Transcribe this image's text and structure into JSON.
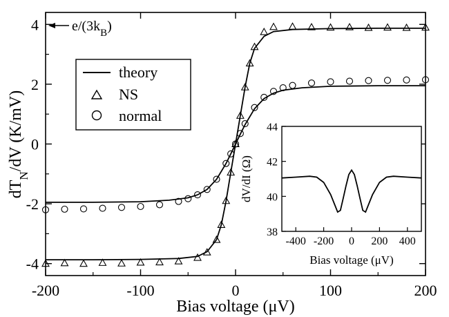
{
  "chart_data": [
    {
      "type": "line",
      "xlabel": "Bias voltage (μV)",
      "ylabel": "dT_N/dV (K/mV)",
      "xlim": [
        -200,
        200
      ],
      "ylim": [
        -4.4,
        4.4
      ],
      "xticks": [
        "-200",
        "-100",
        "0",
        "100",
        "200"
      ],
      "yticks": [
        "-4",
        "-2",
        "0",
        "2",
        "4"
      ],
      "legend": {
        "placement": "upper-left",
        "entries": [
          "theory",
          "NS",
          "normal"
        ]
      },
      "annotation": "e/(3k_B)",
      "annotation_value": 3.87,
      "series": [
        {
          "name": "theory",
          "x": [
            -200,
            -150,
            -100,
            -60,
            -40,
            -30,
            -20,
            -15,
            -10,
            -5,
            0,
            5,
            10,
            15,
            20,
            30,
            40,
            60,
            100,
            150,
            200
          ],
          "y": [
            -3.87,
            -3.87,
            -3.86,
            -3.83,
            -3.76,
            -3.6,
            -3.2,
            -2.7,
            -1.9,
            -0.95,
            0,
            0.95,
            1.9,
            2.7,
            3.2,
            3.6,
            3.76,
            3.83,
            3.86,
            3.87,
            3.87
          ]
        },
        {
          "name": "NS",
          "x": [
            -200,
            -180,
            -160,
            -140,
            -120,
            -100,
            -80,
            -60,
            -40,
            -30,
            -20,
            -15,
            -10,
            -5,
            0,
            5,
            10,
            15,
            20,
            30,
            40,
            60,
            80,
            100,
            120,
            140,
            160,
            180,
            200
          ],
          "y": [
            -4.0,
            -3.98,
            -4.0,
            -3.97,
            -3.99,
            -3.96,
            -3.95,
            -3.92,
            -3.8,
            -3.62,
            -3.2,
            -2.7,
            -1.9,
            -0.95,
            0.0,
            0.95,
            1.9,
            2.7,
            3.25,
            3.75,
            3.92,
            3.93,
            3.91,
            3.9,
            3.91,
            3.89,
            3.9,
            3.89,
            3.9
          ]
        },
        {
          "name": "theory",
          "x": [
            -200,
            -150,
            -100,
            -70,
            -50,
            -40,
            -30,
            -20,
            -10,
            -5,
            0,
            5,
            10,
            20,
            30,
            40,
            50,
            70,
            100,
            150,
            200
          ],
          "y": [
            -1.95,
            -1.95,
            -1.93,
            -1.88,
            -1.8,
            -1.7,
            -1.52,
            -1.18,
            -0.65,
            -0.33,
            0,
            0.33,
            0.65,
            1.18,
            1.52,
            1.7,
            1.8,
            1.88,
            1.93,
            1.95,
            1.95
          ]
        },
        {
          "name": "normal",
          "x": [
            -200,
            -180,
            -160,
            -140,
            -120,
            -100,
            -80,
            -60,
            -50,
            -40,
            -30,
            -20,
            -10,
            -5,
            0,
            5,
            10,
            20,
            30,
            40,
            50,
            60,
            80,
            100,
            120,
            140,
            160,
            180,
            200
          ],
          "y": [
            -2.2,
            -2.18,
            -2.17,
            -2.15,
            -2.12,
            -2.09,
            -2.03,
            -1.92,
            -1.83,
            -1.7,
            -1.52,
            -1.18,
            -0.65,
            -0.33,
            0.0,
            0.35,
            0.68,
            1.22,
            1.56,
            1.76,
            1.88,
            1.96,
            2.04,
            2.08,
            2.1,
            2.12,
            2.13,
            2.14,
            2.15
          ]
        }
      ]
    },
    {
      "type": "line",
      "xlabel": "Bias voltage (μV)",
      "ylabel": "dV/dI (Ω)",
      "xlim": [
        -500,
        500
      ],
      "ylim": [
        38,
        44
      ],
      "xticks": [
        "-400",
        "-200",
        "0",
        "200",
        "400"
      ],
      "yticks": [
        "38",
        "40",
        "42",
        "44"
      ],
      "series": [
        {
          "x": [
            -500,
            -400,
            -300,
            -250,
            -200,
            -150,
            -120,
            -100,
            -80,
            -60,
            -40,
            -20,
            0,
            20,
            40,
            60,
            80,
            100,
            120,
            150,
            200,
            250,
            300,
            400,
            500
          ],
          "y": [
            41.05,
            41.1,
            41.15,
            41.1,
            40.8,
            40.1,
            39.5,
            39.1,
            39.2,
            39.9,
            40.6,
            41.25,
            41.5,
            41.25,
            40.6,
            39.9,
            39.2,
            39.1,
            39.5,
            40.1,
            40.8,
            41.1,
            41.15,
            41.1,
            41.05
          ]
        }
      ]
    }
  ]
}
